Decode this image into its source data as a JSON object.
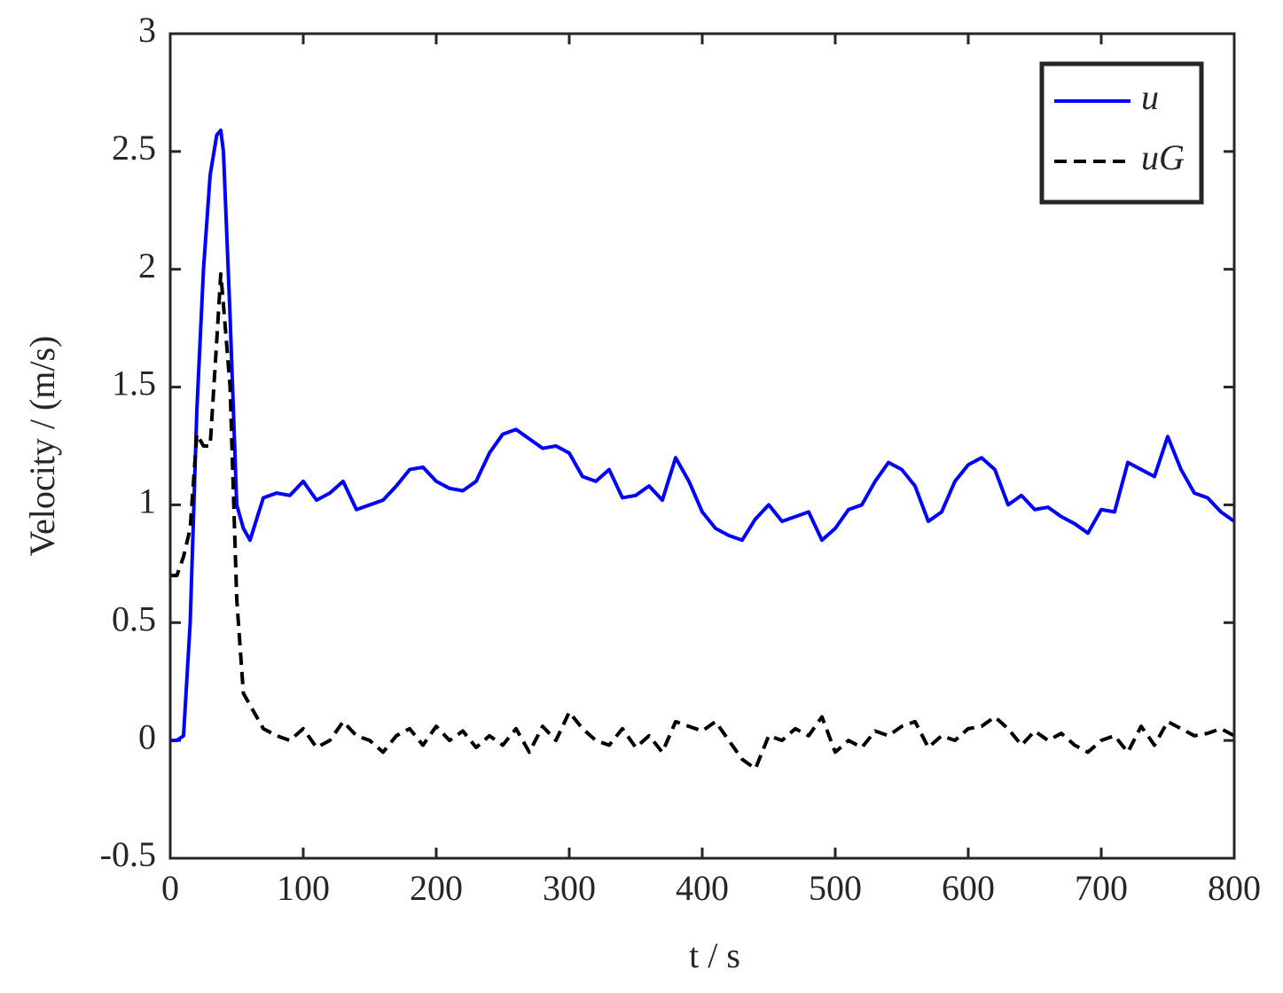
{
  "chart_data": {
    "type": "line",
    "xlabel": "t / s",
    "ylabel": "Velocity / (m/s)",
    "x": [
      0,
      5,
      10,
      15,
      20,
      25,
      30,
      35,
      38,
      40,
      45,
      50,
      55,
      60,
      70,
      80,
      90,
      100,
      110,
      120,
      130,
      140,
      150,
      160,
      170,
      180,
      190,
      200,
      210,
      220,
      230,
      240,
      250,
      260,
      270,
      280,
      290,
      300,
      310,
      320,
      330,
      340,
      350,
      360,
      370,
      380,
      390,
      400,
      410,
      420,
      430,
      440,
      450,
      460,
      470,
      480,
      490,
      500,
      510,
      520,
      530,
      540,
      550,
      560,
      570,
      580,
      590,
      600,
      610,
      620,
      630,
      640,
      650,
      660,
      670,
      680,
      690,
      700,
      710,
      720,
      730,
      740,
      750,
      760,
      770,
      780,
      790,
      800
    ],
    "series": [
      {
        "name": "u",
        "color": "#0000ff",
        "dash": false,
        "values": [
          0,
          0,
          0.02,
          0.5,
          1.4,
          2.0,
          2.4,
          2.57,
          2.59,
          2.5,
          1.8,
          1.0,
          0.9,
          0.85,
          1.03,
          1.05,
          1.04,
          1.1,
          1.02,
          1.05,
          1.1,
          0.98,
          1.0,
          1.02,
          1.08,
          1.15,
          1.16,
          1.1,
          1.07,
          1.06,
          1.1,
          1.22,
          1.3,
          1.32,
          1.28,
          1.24,
          1.25,
          1.22,
          1.12,
          1.1,
          1.15,
          1.03,
          1.04,
          1.08,
          1.02,
          1.2,
          1.1,
          0.97,
          0.9,
          0.87,
          0.85,
          0.94,
          1.0,
          0.93,
          0.95,
          0.97,
          0.85,
          0.9,
          0.98,
          1.0,
          1.1,
          1.18,
          1.15,
          1.08,
          0.93,
          0.97,
          1.1,
          1.17,
          1.2,
          1.15,
          1.0,
          1.04,
          0.98,
          0.99,
          0.95,
          0.92,
          0.88,
          0.98,
          0.97,
          1.18,
          1.15,
          1.12,
          1.29,
          1.15,
          1.05,
          1.03,
          0.97,
          0.93
        ]
      },
      {
        "name": "uG",
        "color": "#000000",
        "dash": true,
        "values": [
          0.7,
          0.7,
          0.78,
          0.9,
          1.3,
          1.25,
          1.25,
          1.7,
          1.98,
          1.85,
          1.5,
          0.6,
          0.2,
          0.15,
          0.05,
          0.02,
          0.0,
          0.05,
          -0.03,
          0.0,
          0.08,
          0.02,
          0.0,
          -0.05,
          0.02,
          0.05,
          -0.02,
          0.06,
          0.0,
          0.04,
          -0.03,
          0.02,
          -0.02,
          0.05,
          -0.05,
          0.06,
          0.0,
          0.12,
          0.05,
          0.0,
          -0.02,
          0.05,
          -0.03,
          0.02,
          -0.05,
          0.08,
          0.06,
          0.04,
          0.08,
          0.0,
          -0.08,
          -0.12,
          0.02,
          0.0,
          0.05,
          0.02,
          0.1,
          -0.05,
          0.0,
          -0.03,
          0.04,
          0.02,
          0.06,
          0.08,
          -0.03,
          0.02,
          0.0,
          0.05,
          0.06,
          0.1,
          0.05,
          -0.02,
          0.04,
          0.0,
          0.03,
          -0.02,
          -0.05,
          0.0,
          0.02,
          -0.05,
          0.06,
          -0.02,
          0.08,
          0.05,
          0.02,
          0.03,
          0.05,
          0.02
        ]
      }
    ],
    "xlim": [
      0,
      800
    ],
    "xticks": [
      0,
      100,
      200,
      300,
      400,
      500,
      600,
      700,
      800
    ],
    "ylim": [
      -0.5,
      3
    ],
    "yticks": [
      -0.5,
      0,
      0.5,
      1,
      1.5,
      2,
      2.5,
      3
    ],
    "grid": false,
    "legend": "upper right"
  }
}
